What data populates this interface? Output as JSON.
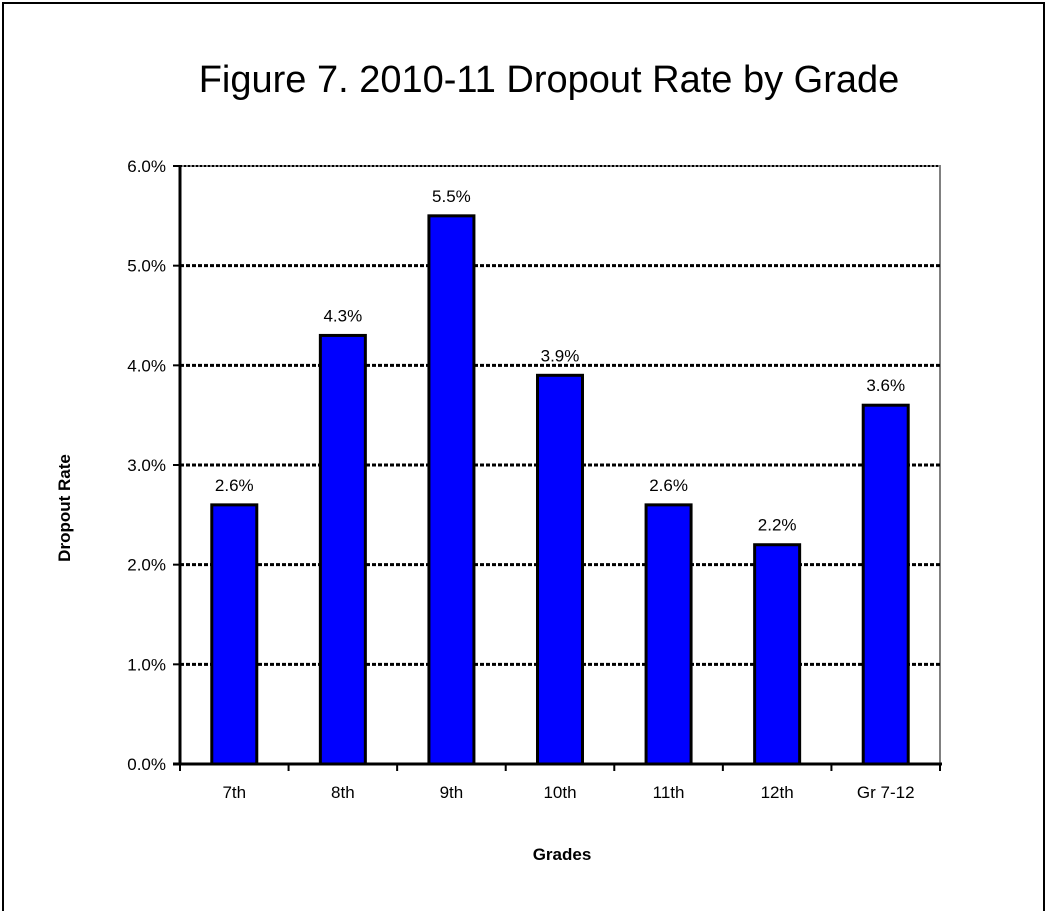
{
  "chart_data": {
    "type": "bar",
    "title": "Figure 7.  2010-11 Dropout Rate by Grade",
    "xlabel": "Grades",
    "ylabel": "Dropout Rate",
    "categories": [
      "7th",
      "8th",
      "9th",
      "10th",
      "11th",
      "12th",
      "Gr 7-12"
    ],
    "values": [
      2.6,
      4.3,
      5.5,
      3.9,
      2.6,
      2.2,
      3.6
    ],
    "data_labels": [
      "2.6%",
      "4.3%",
      "5.5%",
      "3.9%",
      "2.6%",
      "2.2%",
      "3.6%"
    ],
    "ylim": [
      0,
      6
    ],
    "yticks": [
      0,
      1,
      2,
      3,
      4,
      5,
      6
    ],
    "ytick_labels": [
      "0.0%",
      "1.0%",
      "2.0%",
      "3.0%",
      "4.0%",
      "5.0%",
      "6.0%"
    ],
    "grid": true,
    "legend": "none",
    "bar_color": "#0000FF"
  }
}
